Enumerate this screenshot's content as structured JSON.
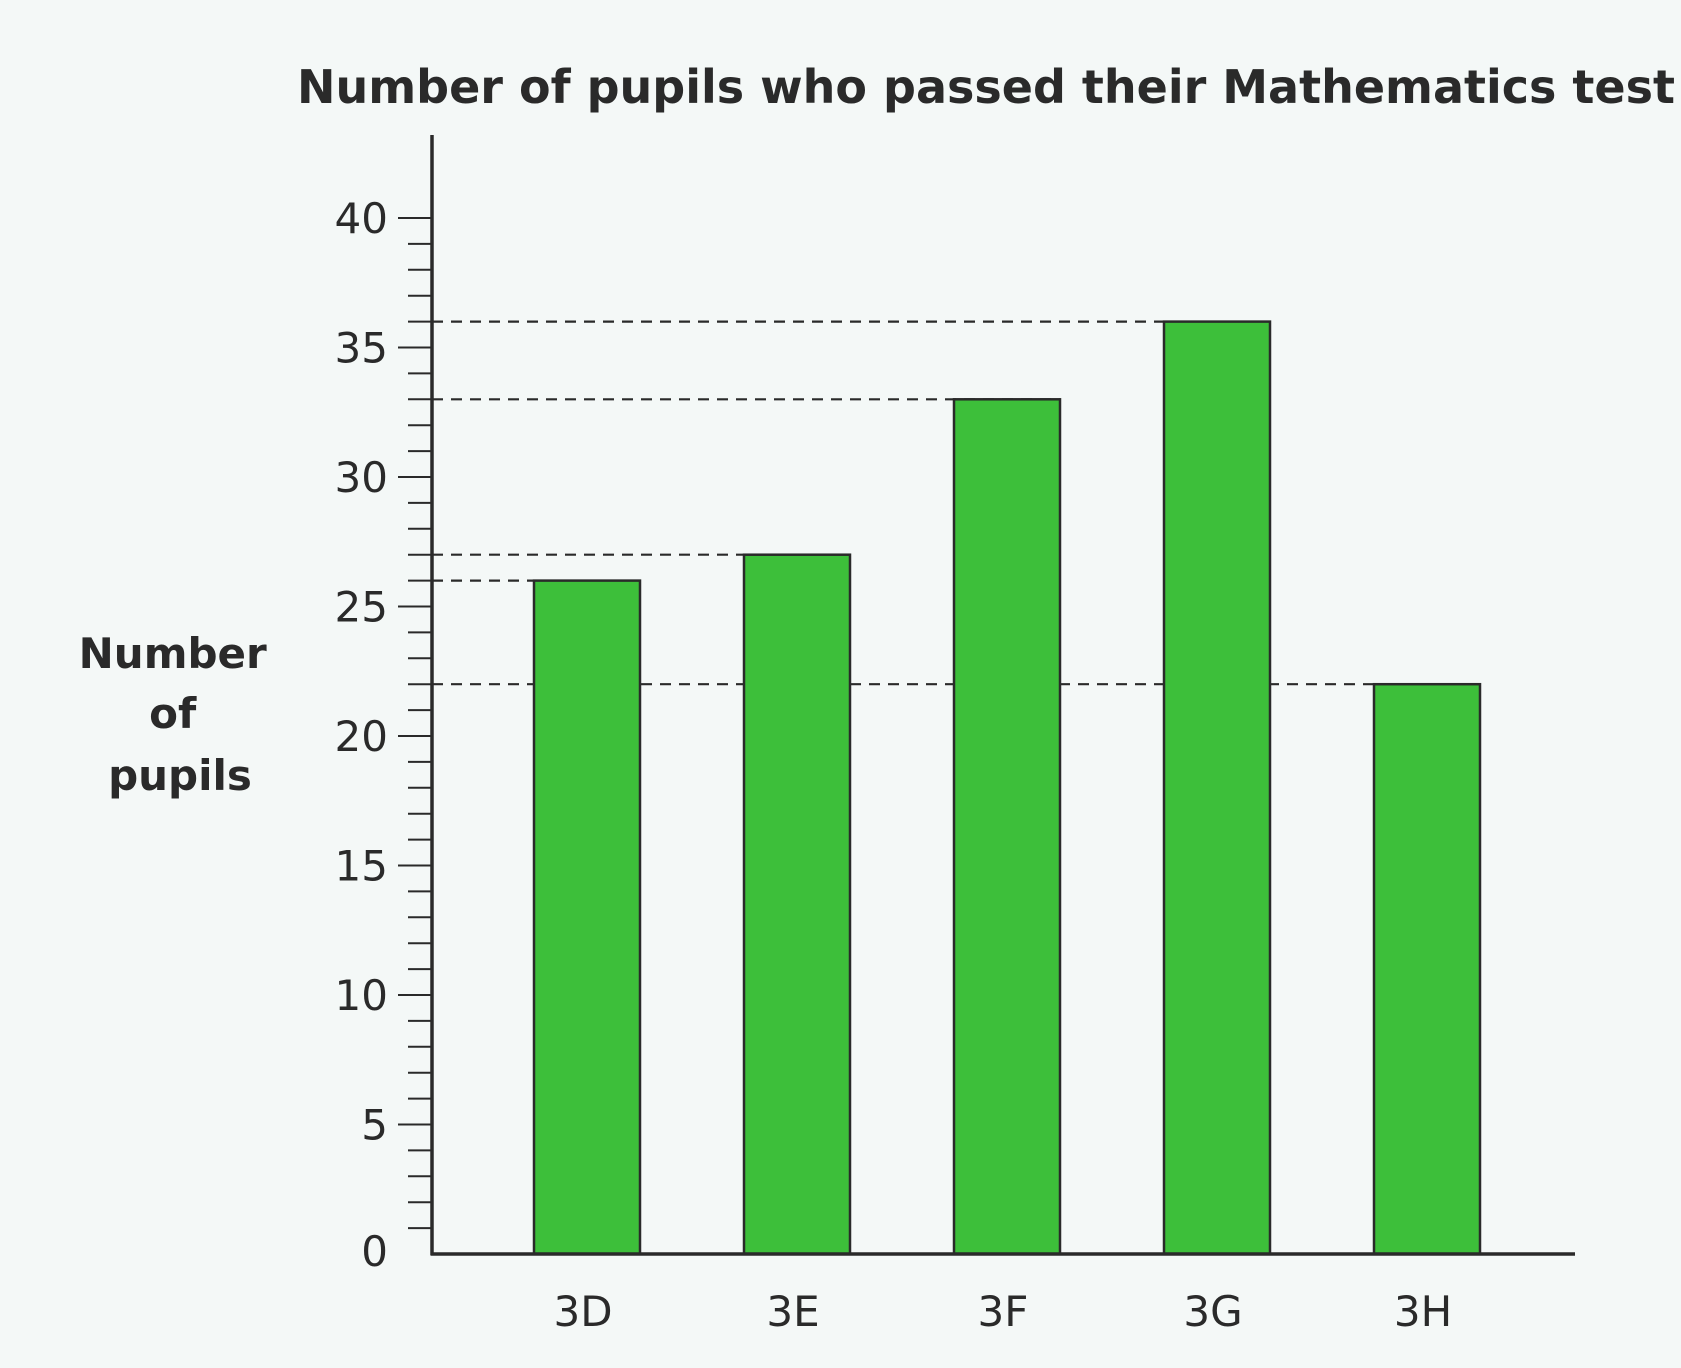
{
  "chart_data": {
    "type": "bar",
    "title": "Number of pupils who passed their Mathematics test",
    "xlabel": "",
    "ylabel_lines": [
      "Number",
      "of",
      "pupils"
    ],
    "categories": [
      "3D",
      "3E",
      "3F",
      "3G",
      "3H"
    ],
    "values": [
      26,
      27,
      33,
      36,
      22
    ],
    "ylim": [
      0,
      43
    ],
    "yticks": [
      0,
      5,
      10,
      15,
      20,
      25,
      30,
      35,
      40
    ],
    "minor_tick_step": 1,
    "reference_lines": [
      36,
      33,
      27,
      26,
      22
    ],
    "grid": false,
    "legend": "none",
    "colors": {
      "bar_fill": "#3dbf3a",
      "bar_stroke": "#2a2a2a",
      "axis": "#2a2a2a",
      "reference_line": "#2a2a2a"
    }
  }
}
